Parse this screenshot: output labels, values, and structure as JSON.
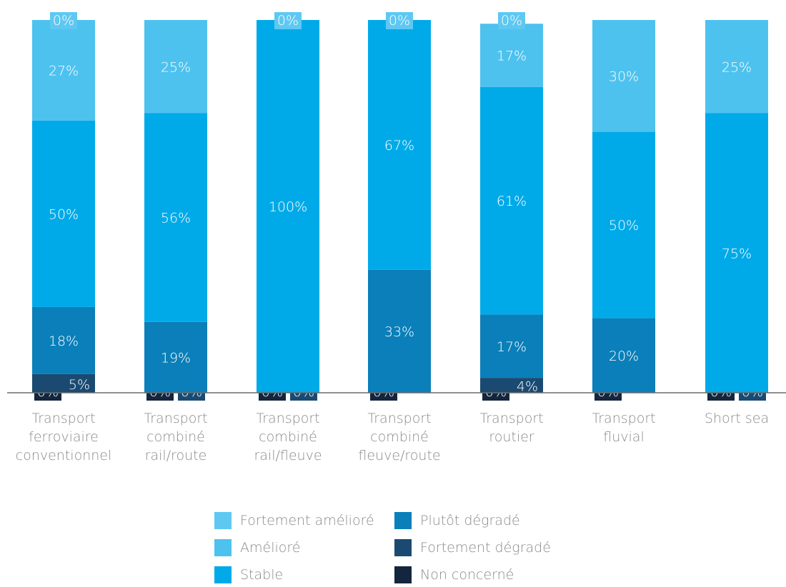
{
  "chart_data": {
    "type": "bar",
    "stacked": true,
    "categories": [
      [
        "Transport",
        "ferroviaire",
        "conventionnel"
      ],
      [
        "Transport",
        "combiné",
        "rail/route"
      ],
      [
        "Transport",
        "combiné",
        "rail/fleuve"
      ],
      [
        "Transport",
        "combiné",
        "fleuve/route"
      ],
      [
        "Transport",
        "routier"
      ],
      [
        "Transport",
        "fluvial"
      ],
      [
        "Short sea"
      ]
    ],
    "series": [
      {
        "name": "Non concerné",
        "color": "#13263d",
        "values": [
          0,
          0,
          0,
          0,
          0,
          0,
          0
        ]
      },
      {
        "name": "Fortement dégradé",
        "color": "#1a4a72",
        "values": [
          5,
          0,
          0,
          0,
          4,
          0,
          0
        ]
      },
      {
        "name": "Plutôt dégradé",
        "color": "#0a7fb9",
        "values": [
          18,
          19,
          0,
          33,
          17,
          20,
          0
        ]
      },
      {
        "name": "Stable",
        "color": "#00aae8",
        "values": [
          50,
          56,
          100,
          67,
          61,
          50,
          75
        ]
      },
      {
        "name": "Amélioré",
        "color": "#4dc2ef",
        "values": [
          27,
          25,
          0,
          0,
          17,
          30,
          25
        ]
      },
      {
        "name": "Fortement amélioré",
        "color": "#5ec8f2",
        "values": [
          0,
          0,
          0,
          0,
          0,
          0,
          0
        ]
      }
    ],
    "labels": [
      {
        "Non concerné": "0%",
        "Fortement dégradé": "5%",
        "Plutôt dégradé": "18%",
        "Stable": "50%",
        "Amélioré": "27%",
        "Fortement amélioré": "0%"
      },
      {
        "Non concerné": "0%",
        "Fortement dégradé": "0%",
        "Plutôt dégradé": "19%",
        "Stable": "56%",
        "Amélioré": "25%"
      },
      {
        "Non concerné": "0%",
        "Fortement dégradé": "0%",
        "Stable": "100%",
        "Fortement amélioré": "0%"
      },
      {
        "Non concerné": "0%",
        "Plutôt dégradé": "33%",
        "Stable": "67%",
        "Fortement amélioré": "0%"
      },
      {
        "Non concerné": "0%",
        "Fortement dégradé": "4%",
        "Plutôt dégradé": "17%",
        "Stable": "61%",
        "Amélioré": "17%",
        "Fortement amélioré": "0%"
      },
      {
        "Non concerné": "0%",
        "Plutôt dégradé": "20%",
        "Stable": "50%",
        "Amélioré": "30%"
      },
      {
        "Non concerné": "0%",
        "Fortement dégradé": "0%",
        "Stable": "75%",
        "Amélioré": "25%"
      }
    ],
    "ylim": [
      0,
      100
    ],
    "grid": false,
    "legend_position": "bottom",
    "legend_order": [
      "Fortement amélioré",
      "Amélioré",
      "Stable",
      "Plutôt dégradé",
      "Fortement dégradé",
      "Non concerné"
    ]
  }
}
